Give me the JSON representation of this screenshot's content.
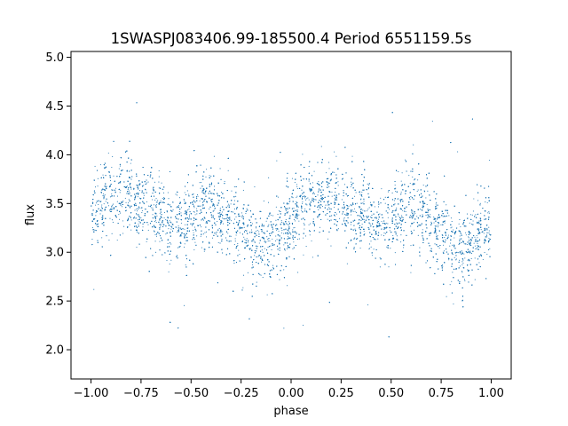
{
  "chart_data": {
    "type": "scatter",
    "title": "1SWASPJ083406.99-185500.4 Period 6551159.5s",
    "xlabel": "phase",
    "ylabel": "flux",
    "xlim": [
      -1.1,
      1.1
    ],
    "ylim": [
      1.7,
      5.06
    ],
    "xticks": [
      -1.0,
      -0.75,
      -0.5,
      -0.25,
      0.0,
      0.25,
      0.5,
      0.75,
      1.0
    ],
    "xtick_labels": [
      "−1.00",
      "−0.75",
      "−0.50",
      "−0.25",
      "0.00",
      "0.25",
      "0.50",
      "0.75",
      "1.00"
    ],
    "yticks": [
      2.0,
      2.5,
      3.0,
      3.5,
      4.0,
      4.5,
      5.0
    ],
    "ytick_labels": [
      "2.0",
      "2.5",
      "3.0",
      "3.5",
      "4.0",
      "4.5",
      "5.0"
    ],
    "grid": false,
    "marker_color": "#1f77b4",
    "phase_range": [
      -1.0,
      1.0
    ],
    "mean_flux_profile": {
      "phase": [
        0.0,
        0.05,
        0.1,
        0.15,
        0.2,
        0.25,
        0.3,
        0.35,
        0.4,
        0.45,
        0.5,
        0.55,
        0.6,
        0.65,
        0.7,
        0.75,
        0.8,
        0.85,
        0.9,
        0.95,
        1.0
      ],
      "flux": [
        3.33,
        3.47,
        3.58,
        3.56,
        3.53,
        3.5,
        3.45,
        3.38,
        3.32,
        3.28,
        3.35,
        3.42,
        3.46,
        3.4,
        3.3,
        3.2,
        3.05,
        3.0,
        3.12,
        3.22,
        3.33
      ]
    },
    "typical_scatter": 0.2,
    "point_count": 12000
  }
}
